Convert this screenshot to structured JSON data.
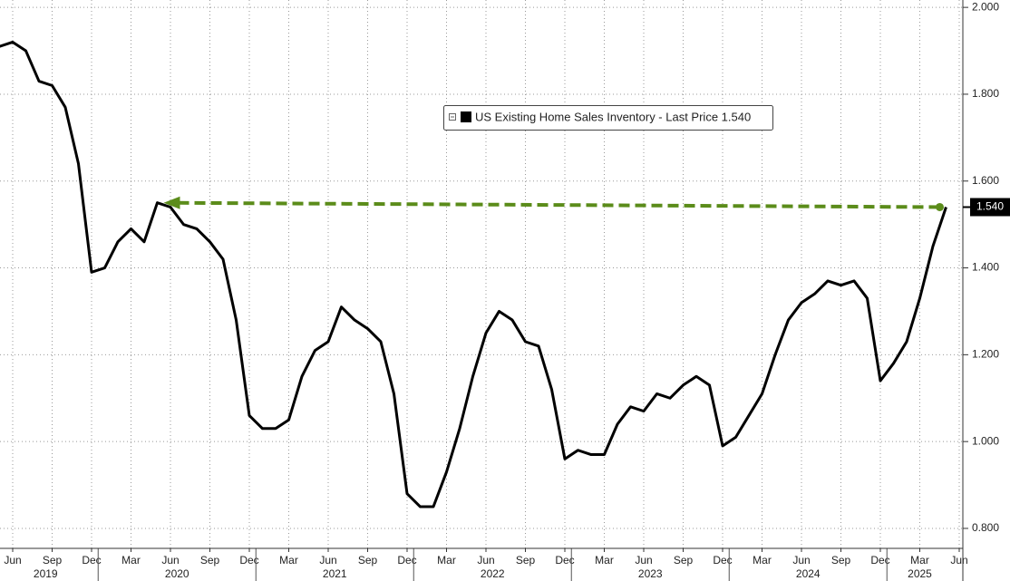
{
  "chart_data": {
    "type": "line",
    "x": [
      "2019-05",
      "2019-06",
      "2019-07",
      "2019-08",
      "2019-09",
      "2019-10",
      "2019-11",
      "2019-12",
      "2020-01",
      "2020-02",
      "2020-03",
      "2020-04",
      "2020-05",
      "2020-06",
      "2020-07",
      "2020-08",
      "2020-09",
      "2020-10",
      "2020-11",
      "2020-12",
      "2021-01",
      "2021-02",
      "2021-03",
      "2021-04",
      "2021-05",
      "2021-06",
      "2021-07",
      "2021-08",
      "2021-09",
      "2021-10",
      "2021-11",
      "2021-12",
      "2022-01",
      "2022-02",
      "2022-03",
      "2022-04",
      "2022-05",
      "2022-06",
      "2022-07",
      "2022-08",
      "2022-09",
      "2022-10",
      "2022-11",
      "2022-12",
      "2023-01",
      "2023-02",
      "2023-03",
      "2023-04",
      "2023-05",
      "2023-06",
      "2023-07",
      "2023-08",
      "2023-09",
      "2023-10",
      "2023-11",
      "2023-12",
      "2024-01",
      "2024-02",
      "2024-03",
      "2024-04",
      "2024-05",
      "2024-06",
      "2024-07",
      "2024-08",
      "2024-09",
      "2024-10",
      "2024-11",
      "2024-12",
      "2025-01",
      "2025-02",
      "2025-03",
      "2025-04",
      "2025-05"
    ],
    "series": [
      {
        "name": "US Existing Home Sales Inventory - Last Price 1.540",
        "color": "#000000",
        "last_label": "1.540",
        "values": [
          1.91,
          1.92,
          1.9,
          1.83,
          1.82,
          1.77,
          1.64,
          1.39,
          1.4,
          1.46,
          1.49,
          1.46,
          1.55,
          1.54,
          1.5,
          1.49,
          1.46,
          1.42,
          1.28,
          1.06,
          1.03,
          1.03,
          1.05,
          1.15,
          1.21,
          1.23,
          1.31,
          1.28,
          1.26,
          1.23,
          1.11,
          0.88,
          0.85,
          0.85,
          0.93,
          1.03,
          1.15,
          1.25,
          1.3,
          1.28,
          1.23,
          1.22,
          1.12,
          0.96,
          0.98,
          0.97,
          0.97,
          1.04,
          1.08,
          1.07,
          1.11,
          1.1,
          1.13,
          1.15,
          1.13,
          0.99,
          1.01,
          1.06,
          1.11,
          1.2,
          1.28,
          1.32,
          1.34,
          1.37,
          1.36,
          1.37,
          1.33,
          1.14,
          1.18,
          1.23,
          1.33,
          1.45,
          1.54
        ]
      }
    ],
    "xticks": [
      {
        "value": "2019-06",
        "label": "Jun"
      },
      {
        "value": "2019-09",
        "label": "Sep"
      },
      {
        "value": "2019-12",
        "label": "Dec"
      },
      {
        "value": "2020-03",
        "label": "Mar"
      },
      {
        "value": "2020-06",
        "label": "Jun"
      },
      {
        "value": "2020-09",
        "label": "Sep"
      },
      {
        "value": "2020-12",
        "label": "Dec"
      },
      {
        "value": "2021-03",
        "label": "Mar"
      },
      {
        "value": "2021-06",
        "label": "Jun"
      },
      {
        "value": "2021-09",
        "label": "Sep"
      },
      {
        "value": "2021-12",
        "label": "Dec"
      },
      {
        "value": "2022-03",
        "label": "Mar"
      },
      {
        "value": "2022-06",
        "label": "Jun"
      },
      {
        "value": "2022-09",
        "label": "Sep"
      },
      {
        "value": "2022-12",
        "label": "Dec"
      },
      {
        "value": "2023-03",
        "label": "Mar"
      },
      {
        "value": "2023-06",
        "label": "Jun"
      },
      {
        "value": "2023-09",
        "label": "Sep"
      },
      {
        "value": "2023-12",
        "label": "Dec"
      },
      {
        "value": "2024-03",
        "label": "Mar"
      },
      {
        "value": "2024-06",
        "label": "Jun"
      },
      {
        "value": "2024-09",
        "label": "Sep"
      },
      {
        "value": "2024-12",
        "label": "Dec"
      },
      {
        "value": "2025-03",
        "label": "Mar"
      },
      {
        "value": "2025-06",
        "label": "Jun"
      }
    ],
    "years": [
      2019,
      2020,
      2021,
      2022,
      2023,
      2024,
      2025
    ],
    "ylim": [
      0.754,
      2.017
    ],
    "yticks": [
      {
        "value": 0.8,
        "label": "0.800"
      },
      {
        "value": 1.0,
        "label": "1.000"
      },
      {
        "value": 1.2,
        "label": "1.200"
      },
      {
        "value": 1.4,
        "label": "1.400"
      },
      {
        "value": 1.6,
        "label": "1.600"
      },
      {
        "value": 1.8,
        "label": "1.800"
      },
      {
        "value": 2.0,
        "label": "2.000"
      }
    ],
    "grid": true,
    "arrow": {
      "from": "2025-05",
      "to": "2020-05",
      "color": "#5b8c1a"
    }
  }
}
